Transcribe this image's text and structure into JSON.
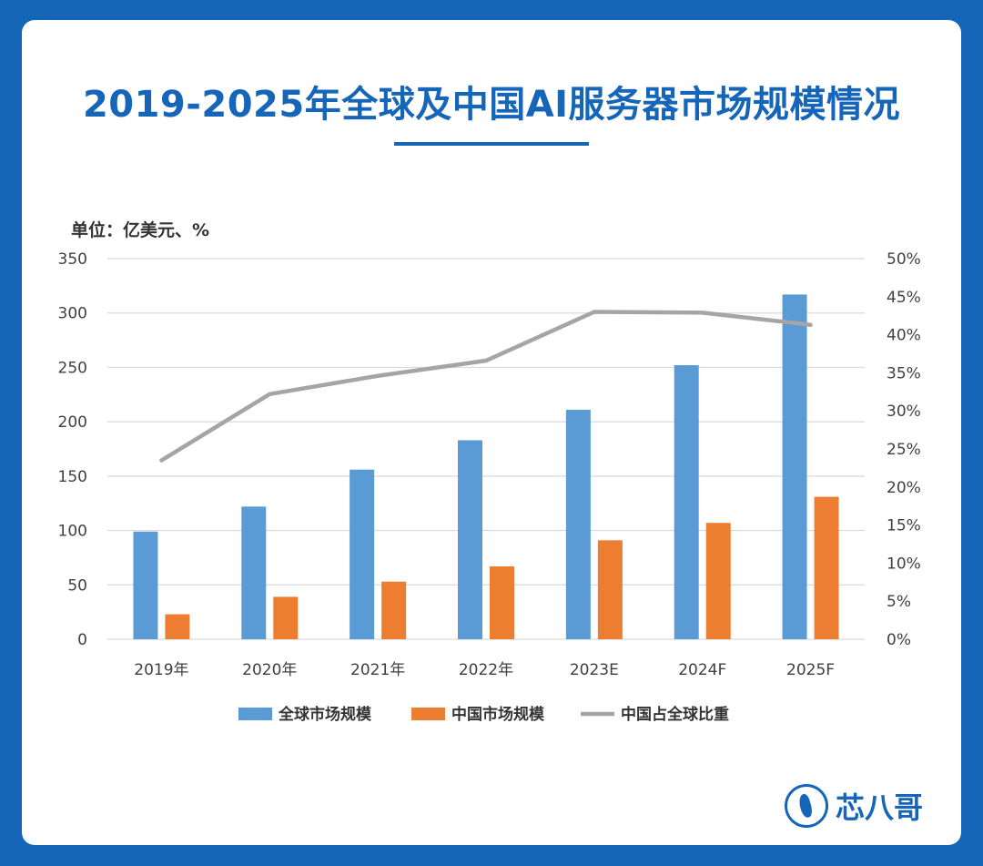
{
  "title": "2019-2025年全球及中国AI服务器市场规模情况",
  "unit_label": "单位：亿美元、%",
  "logo": {
    "icon": "kingfisher-logo-icon",
    "text": "芯八哥"
  },
  "colors": {
    "global": "#5b9bd5",
    "china": "#ed7d31",
    "share": "#a5a5a5",
    "grid": "#d9d9d9",
    "accent": "#1565b8"
  },
  "chart_data": {
    "type": "bar",
    "categories": [
      "2019年",
      "2020年",
      "2021年",
      "2022年",
      "2023E",
      "2024F",
      "2025F"
    ],
    "series": [
      {
        "name": "全球市场规模",
        "type": "bar",
        "axis": "left",
        "values": [
          99,
          122,
          156,
          183,
          211,
          252,
          317
        ]
      },
      {
        "name": "中国市场规模",
        "type": "bar",
        "axis": "left",
        "values": [
          23,
          39,
          53,
          67,
          91,
          107,
          131
        ]
      },
      {
        "name": "中国占全球比重",
        "type": "line",
        "axis": "right",
        "values": [
          23.5,
          32.2,
          34.6,
          36.6,
          43.0,
          42.9,
          41.3
        ]
      }
    ],
    "y_left": {
      "min": 0,
      "max": 350,
      "ticks": [
        "0",
        "50",
        "100",
        "150",
        "200",
        "250",
        "300",
        "350"
      ]
    },
    "y_right": {
      "min": 0,
      "max": 50,
      "ticks": [
        "0%",
        "5%",
        "10%",
        "15%",
        "20%",
        "25%",
        "30%",
        "35%",
        "40%",
        "45%",
        "50%"
      ]
    },
    "grid": true,
    "legend_position": "bottom"
  }
}
